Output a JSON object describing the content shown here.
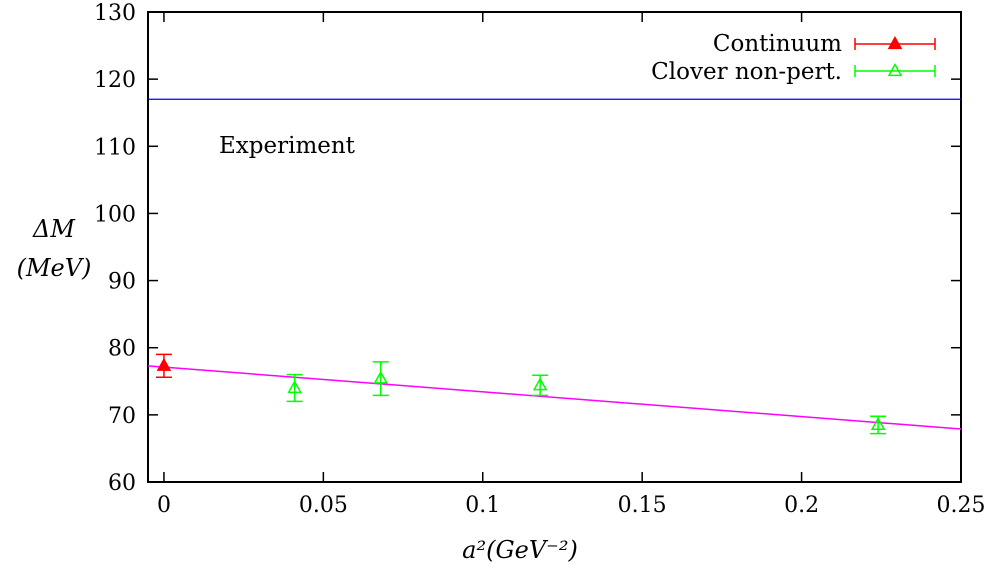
{
  "chart_data": {
    "type": "scatter",
    "xlabel": "a²(GeV⁻²)",
    "ylabel_line1": "ΔM",
    "ylabel_line2": "(MeV)",
    "xlim": [
      -0.005,
      0.25
    ],
    "ylim": [
      60,
      130
    ],
    "x_ticks": [
      0,
      0.05,
      0.1,
      0.15,
      0.2,
      0.25
    ],
    "x_tick_labels": [
      "0",
      "0.05",
      "0.1",
      "0.15",
      "0.2",
      "0.25"
    ],
    "y_ticks": [
      60,
      70,
      80,
      90,
      100,
      110,
      120,
      130
    ],
    "y_tick_labels": [
      "60",
      "70",
      "80",
      "90",
      "100",
      "110",
      "120",
      "130"
    ],
    "grid": false,
    "legend_position": "top-right",
    "series": [
      {
        "name": "Continuum",
        "color": "#ff0000",
        "marker": "filled-triangle",
        "points": [
          {
            "x": 0.0,
            "y": 77.3,
            "err": 1.7
          }
        ]
      },
      {
        "name": "Clover non-pert.",
        "color": "#00ff00",
        "marker": "open-triangle",
        "points": [
          {
            "x": 0.041,
            "y": 74.0,
            "err": 2.0
          },
          {
            "x": 0.068,
            "y": 75.4,
            "err": 2.5
          },
          {
            "x": 0.118,
            "y": 74.4,
            "err": 1.5
          },
          {
            "x": 0.224,
            "y": 68.5,
            "err": 1.3
          }
        ]
      }
    ],
    "fit_line": {
      "color": "#ff00ff",
      "x": [
        -0.005,
        0.25
      ],
      "y": [
        77.3,
        67.9
      ]
    },
    "experiment_line": {
      "color": "#0000ff",
      "y": 117
    },
    "annotations": [
      {
        "text": "Experiment",
        "x": 0.017,
        "y": 110
      }
    ]
  }
}
